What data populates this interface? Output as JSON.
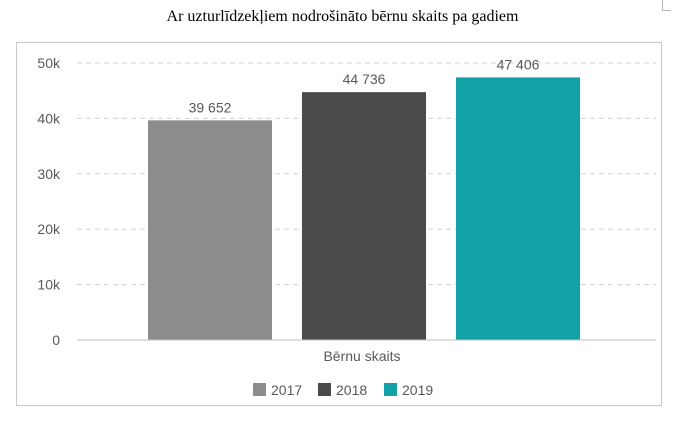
{
  "title": "Ar uzturlīdzekļiem nodrošināto bērnu skaits pa gadiem",
  "chart_data": {
    "type": "bar",
    "title": "Ar uzturlīdzekļiem nodrošināto bērnu skaits pa gadiem",
    "categories": [
      "Bērnu skaits"
    ],
    "series": [
      {
        "name": "2017",
        "values": [
          39652
        ],
        "label": "39 652",
        "color": "#8c8c8c"
      },
      {
        "name": "2018",
        "values": [
          44736
        ],
        "label": "44 736",
        "color": "#4a4a4a"
      },
      {
        "name": "2019",
        "values": [
          47406
        ],
        "label": "47 406",
        "color": "#12a1a6"
      }
    ],
    "ylim": [
      0,
      50000
    ],
    "yticks": [
      0,
      10000,
      20000,
      30000,
      40000,
      50000
    ],
    "yticklabels": [
      "0",
      "10k",
      "20k",
      "30k",
      "40k",
      "50k"
    ],
    "grid": true,
    "legend_position": "bottom",
    "xlabel": "",
    "ylabel": ""
  }
}
